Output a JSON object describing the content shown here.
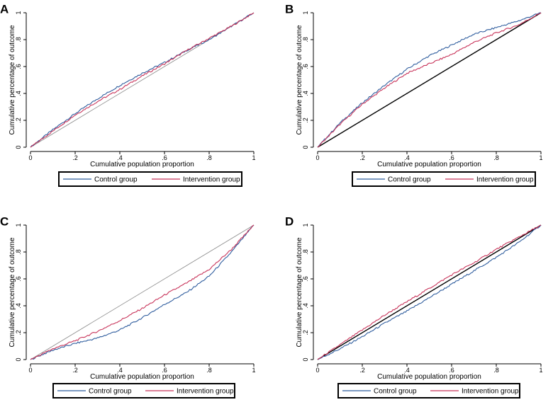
{
  "colors": {
    "control": "#2f5d9e",
    "intervention": "#c8345a",
    "equality": "#000000"
  },
  "chart_data": [
    {
      "panel": "A",
      "type": "line",
      "xlabel": "Cumulative population proportion",
      "ylabel": "Cumulative percentage of outcome",
      "xlim": [
        0,
        1
      ],
      "ylim": [
        0,
        1
      ],
      "xticks": [
        "0",
        ".2",
        ".4",
        ".6",
        ".8",
        "1"
      ],
      "yticks": [
        "0",
        ".2",
        ".4",
        ".6",
        ".8",
        "1"
      ],
      "legend": [
        "Control group",
        "Intervention group"
      ],
      "equality_line": {
        "x": [
          0,
          1
        ],
        "y": [
          0,
          1
        ],
        "style": "thin-gray"
      },
      "series": [
        {
          "name": "Control group",
          "x": [
            0,
            0.1,
            0.2,
            0.3,
            0.4,
            0.5,
            0.6,
            0.7,
            0.8,
            0.9,
            1
          ],
          "y": [
            0,
            0.13,
            0.25,
            0.36,
            0.46,
            0.55,
            0.63,
            0.72,
            0.8,
            0.9,
            1
          ]
        },
        {
          "name": "Intervention group",
          "x": [
            0,
            0.1,
            0.2,
            0.3,
            0.4,
            0.5,
            0.6,
            0.7,
            0.8,
            0.9,
            1
          ],
          "y": [
            0,
            0.12,
            0.24,
            0.34,
            0.43,
            0.53,
            0.62,
            0.72,
            0.81,
            0.9,
            1
          ]
        }
      ]
    },
    {
      "panel": "B",
      "type": "line",
      "xlabel": "Cumulative population proportion",
      "ylabel": "Cumulative percentage of outcome",
      "xlim": [
        0,
        1
      ],
      "ylim": [
        0,
        1
      ],
      "xticks": [
        "0",
        ".2",
        ".4",
        ".6",
        ".8",
        "1"
      ],
      "yticks": [
        "0",
        ".2",
        ".4",
        ".6",
        ".8",
        "1"
      ],
      "legend": [
        "Control group",
        "Intervention group"
      ],
      "equality_line": {
        "x": [
          0,
          1
        ],
        "y": [
          0,
          1
        ],
        "style": "black"
      },
      "series": [
        {
          "name": "Control group",
          "x": [
            0,
            0.1,
            0.2,
            0.3,
            0.4,
            0.5,
            0.6,
            0.7,
            0.8,
            0.9,
            1
          ],
          "y": [
            0,
            0.18,
            0.33,
            0.46,
            0.58,
            0.68,
            0.76,
            0.84,
            0.89,
            0.94,
            1
          ]
        },
        {
          "name": "Intervention group",
          "x": [
            0,
            0.1,
            0.2,
            0.3,
            0.4,
            0.5,
            0.6,
            0.7,
            0.8,
            0.9,
            1
          ],
          "y": [
            0,
            0.17,
            0.32,
            0.44,
            0.55,
            0.62,
            0.69,
            0.78,
            0.85,
            0.91,
            1
          ]
        }
      ]
    },
    {
      "panel": "C",
      "type": "line",
      "xlabel": "Cumulative population proportion",
      "ylabel": "Cumulative percentage of outcome",
      "xlim": [
        0,
        1
      ],
      "ylim": [
        0,
        1
      ],
      "xticks": [
        "0",
        ".2",
        ".4",
        ".6",
        ".8",
        "1"
      ],
      "yticks": [
        "0",
        ".2",
        ".4",
        ".6",
        ".8",
        "1"
      ],
      "legend": [
        "Control group",
        "Intervention group"
      ],
      "equality_line": {
        "x": [
          0,
          1
        ],
        "y": [
          0,
          1
        ],
        "style": "thin-gray"
      },
      "series": [
        {
          "name": "Control group",
          "x": [
            0,
            0.1,
            0.2,
            0.3,
            0.4,
            0.5,
            0.6,
            0.7,
            0.8,
            0.9,
            1
          ],
          "y": [
            0,
            0.07,
            0.12,
            0.16,
            0.22,
            0.31,
            0.41,
            0.5,
            0.62,
            0.8,
            1
          ]
        },
        {
          "name": "Intervention group",
          "x": [
            0,
            0.1,
            0.2,
            0.3,
            0.4,
            0.5,
            0.6,
            0.7,
            0.8,
            0.9,
            1
          ],
          "y": [
            0,
            0.08,
            0.14,
            0.21,
            0.29,
            0.38,
            0.48,
            0.57,
            0.67,
            0.82,
            1
          ]
        }
      ]
    },
    {
      "panel": "D",
      "type": "line",
      "xlabel": "Cumulative population proportion",
      "ylabel": "Cumulative percentage of outcome",
      "xlim": [
        0,
        1
      ],
      "ylim": [
        0,
        1
      ],
      "xticks": [
        "0",
        ".2",
        ".4",
        ".6",
        ".8",
        "1"
      ],
      "yticks": [
        "0",
        ".2",
        ".4",
        ".6",
        ".8",
        "1"
      ],
      "legend": [
        "Control group",
        "Intervention group"
      ],
      "equality_line": {
        "x": [
          0,
          1
        ],
        "y": [
          0,
          1
        ],
        "style": "black"
      },
      "series": [
        {
          "name": "Control group",
          "x": [
            0,
            0.1,
            0.2,
            0.3,
            0.4,
            0.5,
            0.6,
            0.7,
            0.8,
            0.9,
            1
          ],
          "y": [
            0,
            0.08,
            0.17,
            0.27,
            0.36,
            0.46,
            0.56,
            0.66,
            0.76,
            0.87,
            1
          ]
        },
        {
          "name": "Intervention group",
          "x": [
            0,
            0.1,
            0.2,
            0.3,
            0.4,
            0.5,
            0.6,
            0.7,
            0.8,
            0.9,
            1
          ],
          "y": [
            0,
            0.11,
            0.22,
            0.33,
            0.43,
            0.53,
            0.63,
            0.72,
            0.82,
            0.91,
            1
          ]
        }
      ]
    }
  ]
}
